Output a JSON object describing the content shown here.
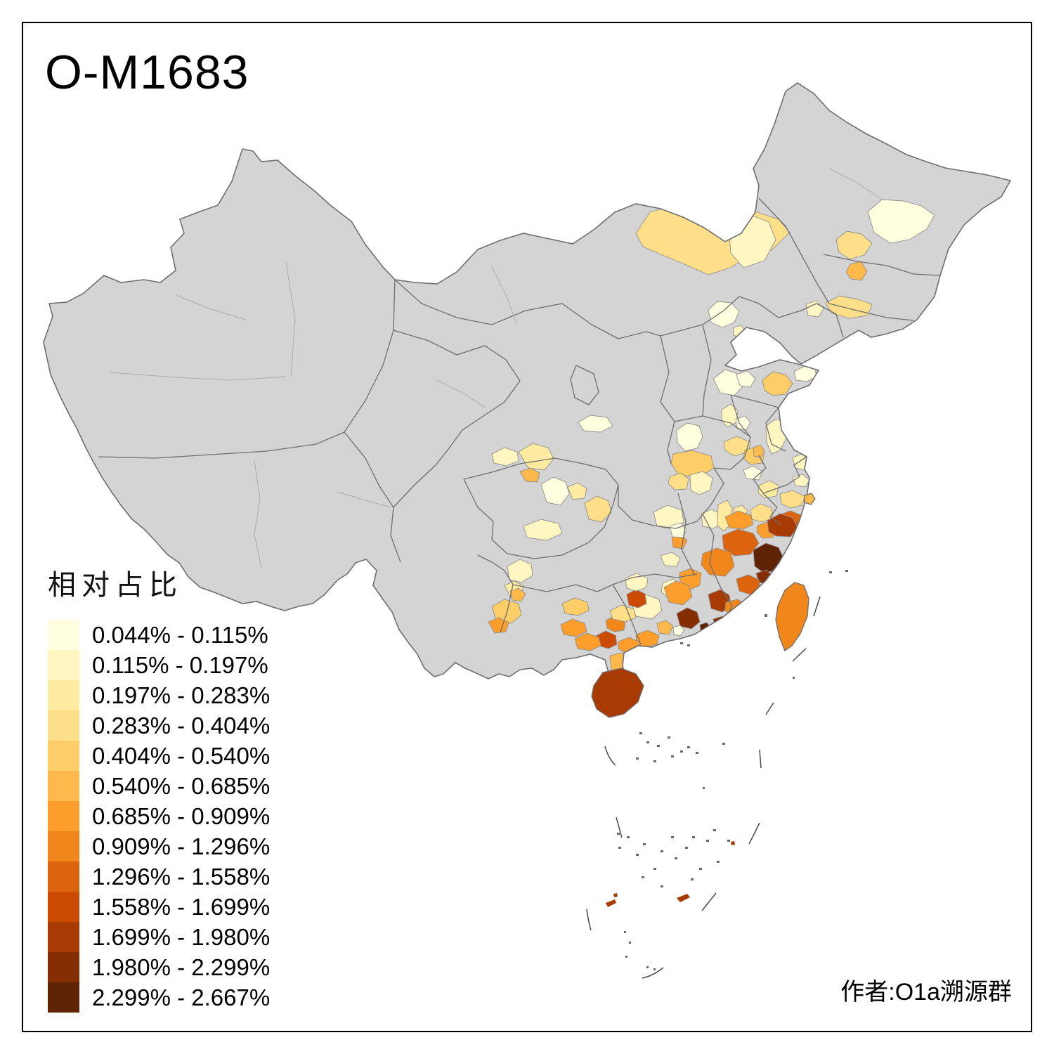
{
  "title": "O-M1683",
  "attribution": "作者:O1a溯源群",
  "legend": {
    "title": "相对占比",
    "classes": [
      {
        "label": "0.044% - 0.115%",
        "color": "#FFFFE0"
      },
      {
        "label": "0.115% - 0.197%",
        "color": "#FFF6C2"
      },
      {
        "label": "0.197% - 0.283%",
        "color": "#FEEBA0"
      },
      {
        "label": "0.283% - 0.404%",
        "color": "#FEDF89"
      },
      {
        "label": "0.404% - 0.540%",
        "color": "#FDCD67"
      },
      {
        "label": "0.540% - 0.685%",
        "color": "#FDB94B"
      },
      {
        "label": "0.685% - 0.909%",
        "color": "#FD9D2C"
      },
      {
        "label": "0.909% - 1.296%",
        "color": "#F1861B"
      },
      {
        "label": "1.296% - 1.558%",
        "color": "#DC640E"
      },
      {
        "label": "1.558% - 1.699%",
        "color": "#CC4B02"
      },
      {
        "label": "1.699% - 1.980%",
        "color": "#A83B03"
      },
      {
        "label": "1.980% - 2.299%",
        "color": "#862E03"
      },
      {
        "label": "2.299% - 2.667%",
        "color": "#5F2405"
      }
    ]
  },
  "map": {
    "base_color": "#D4D4D4",
    "border_color": "#6E6E6E",
    "sub_border_color": "#ABABAB",
    "patch_stroke": "#8F8F8F",
    "sea_mark_color": "#4A4A4A",
    "regions": [
      {
        "id": "nm1",
        "class": 4
      },
      {
        "id": "nm2",
        "class": 2
      },
      {
        "id": "hlj1",
        "class": 1
      },
      {
        "id": "jl1",
        "class": 4
      },
      {
        "id": "jl2",
        "class": 6
      },
      {
        "id": "ln1",
        "class": 4
      },
      {
        "id": "ln2",
        "class": 2
      },
      {
        "id": "bj1",
        "class": 1
      },
      {
        "id": "tj1",
        "class": 2
      },
      {
        "id": "heb1",
        "class": 1
      },
      {
        "id": "sx1",
        "class": 2
      },
      {
        "id": "sx2",
        "class": 1
      },
      {
        "id": "shx1",
        "class": 1
      },
      {
        "id": "gs1",
        "class": 1
      },
      {
        "id": "sd1",
        "class": 5
      },
      {
        "id": "sd2",
        "class": 1
      },
      {
        "id": "sd3",
        "class": 1
      },
      {
        "id": "hen1",
        "class": 5
      },
      {
        "id": "hen2",
        "class": 4
      },
      {
        "id": "hen3",
        "class": 5
      },
      {
        "id": "hen4",
        "class": 1
      },
      {
        "id": "hb1",
        "class": 2
      },
      {
        "id": "hb2",
        "class": 4
      },
      {
        "id": "hb3",
        "class": 2
      },
      {
        "id": "hb4",
        "class": 7
      },
      {
        "id": "hun1",
        "class": 1
      },
      {
        "id": "hun2",
        "class": 2
      },
      {
        "id": "hun3",
        "class": 2
      },
      {
        "id": "hun4",
        "class": 7
      },
      {
        "id": "js1",
        "class": 2
      },
      {
        "id": "js2",
        "class": 2
      },
      {
        "id": "sh1",
        "class": 2
      },
      {
        "id": "ah1",
        "class": 3
      },
      {
        "id": "ah2",
        "class": 6
      },
      {
        "id": "zj1",
        "class": 4
      },
      {
        "id": "zj2",
        "class": 6
      },
      {
        "id": "zj3",
        "class": 9
      },
      {
        "id": "jx1",
        "class": 2
      },
      {
        "id": "jx2",
        "class": 3
      },
      {
        "id": "jx3",
        "class": 3
      },
      {
        "id": "jx4",
        "class": 4
      },
      {
        "id": "jx5",
        "class": 7
      },
      {
        "id": "fj1",
        "class": 7
      },
      {
        "id": "fj2",
        "class": 9
      },
      {
        "id": "fj3",
        "class": 11
      },
      {
        "id": "fj4",
        "class": 13
      },
      {
        "id": "fj5",
        "class": 12
      },
      {
        "id": "fj6",
        "class": 8
      },
      {
        "id": "fj7",
        "class": 9
      },
      {
        "id": "fj8",
        "class": 11
      },
      {
        "id": "fj9",
        "class": 8
      },
      {
        "id": "fj10",
        "class": 12
      },
      {
        "id": "gd1",
        "class": 12
      },
      {
        "id": "gd2",
        "class": 12
      },
      {
        "id": "gd3",
        "class": 13
      },
      {
        "id": "gd4",
        "class": 7
      },
      {
        "id": "gd5",
        "class": 2
      },
      {
        "id": "gd6",
        "class": 6
      },
      {
        "id": "gd7",
        "class": 1
      },
      {
        "id": "gd8",
        "class": 7
      },
      {
        "id": "gd9",
        "class": 7
      },
      {
        "id": "gd10",
        "class": 6
      },
      {
        "id": "gx1",
        "class": 10
      },
      {
        "id": "gx2",
        "class": 8
      },
      {
        "id": "gx3",
        "class": 10
      },
      {
        "id": "gx4",
        "class": 4
      },
      {
        "id": "gx5",
        "class": 7
      },
      {
        "id": "gx6",
        "class": 7
      },
      {
        "id": "gx7",
        "class": 5
      },
      {
        "id": "gx8",
        "class": 2
      },
      {
        "id": "yn1",
        "class": 5
      },
      {
        "id": "yn2",
        "class": 7
      },
      {
        "id": "yn3",
        "class": 3
      },
      {
        "id": "sc1",
        "class": 3
      },
      {
        "id": "sc2",
        "class": 6
      },
      {
        "id": "sc3",
        "class": 1
      },
      {
        "id": "sc4",
        "class": 3
      },
      {
        "id": "sc5",
        "class": 2
      },
      {
        "id": "sc6",
        "class": 2
      },
      {
        "id": "cq1",
        "class": 4
      },
      {
        "id": "gz1",
        "class": 2
      },
      {
        "id": "gz2",
        "class": 6
      },
      {
        "id": "hi1",
        "class": 11
      },
      {
        "id": "tw1",
        "class": 8
      },
      {
        "id": "isl1",
        "class": 11
      },
      {
        "id": "isl2",
        "class": 11
      },
      {
        "id": "isl3",
        "class": 11
      },
      {
        "id": "isl4",
        "class": 11
      }
    ]
  }
}
